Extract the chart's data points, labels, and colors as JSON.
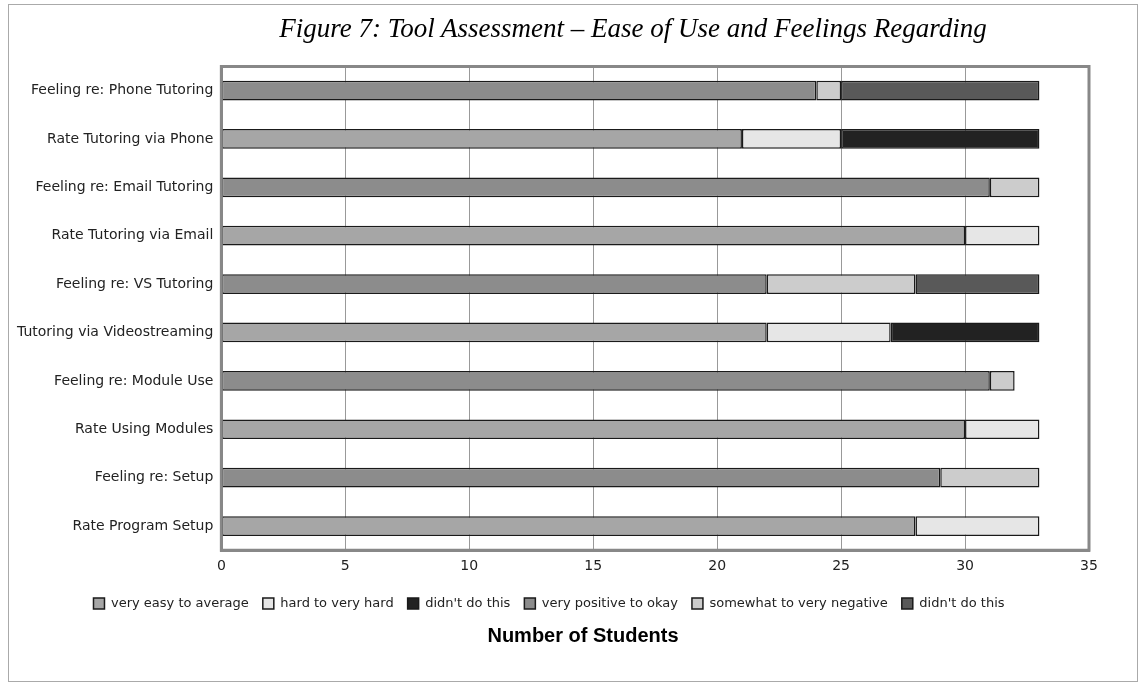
{
  "chart_data": {
    "type": "bar",
    "orientation": "horizontal",
    "stacked": true,
    "title": "Figure 7: Tool Assessment – Ease of Use and Feelings Regarding",
    "xlabel": "Number of Students",
    "categories": [
      "Feeling re: Phone Tutoring",
      "Rate Tutoring via Phone",
      "Feeling re: Email Tutoring",
      "Rate Tutoring via Email",
      "Feeling re: VS Tutoring",
      "Tutoring via Videostreaming",
      "Feeling re: Module Use",
      "Rate Using Modules",
      "Feeling re: Setup",
      "Rate Program Setup"
    ],
    "series": [
      {
        "name": "very easy to average",
        "color": "#a6a6a6",
        "values": [
          null,
          21,
          null,
          30,
          null,
          22,
          null,
          30,
          null,
          28
        ]
      },
      {
        "name": "hard to very hard",
        "color": "#e6e6e6",
        "values": [
          null,
          4,
          null,
          3,
          null,
          5,
          null,
          3,
          null,
          5
        ]
      },
      {
        "name": "didn't do this",
        "color": "#222222",
        "values": [
          null,
          8,
          null,
          null,
          null,
          6,
          null,
          null,
          null,
          null
        ]
      },
      {
        "name": "very positive to okay",
        "color": "#8c8c8c",
        "values": [
          24,
          null,
          31,
          null,
          22,
          null,
          31,
          null,
          29,
          null
        ]
      },
      {
        "name": "somewhat to very negative",
        "color": "#cccccc",
        "values": [
          1,
          null,
          2,
          null,
          6,
          null,
          1,
          null,
          4,
          null
        ]
      },
      {
        "name": "didn't do this",
        "color": "#595959",
        "values": [
          8,
          null,
          null,
          null,
          5,
          null,
          null,
          null,
          null,
          null
        ]
      }
    ],
    "xlim": [
      0,
      35
    ],
    "xticks": [
      0,
      5,
      10,
      15,
      20,
      25,
      30,
      35
    ],
    "grid": "x",
    "legend": "bottom"
  }
}
